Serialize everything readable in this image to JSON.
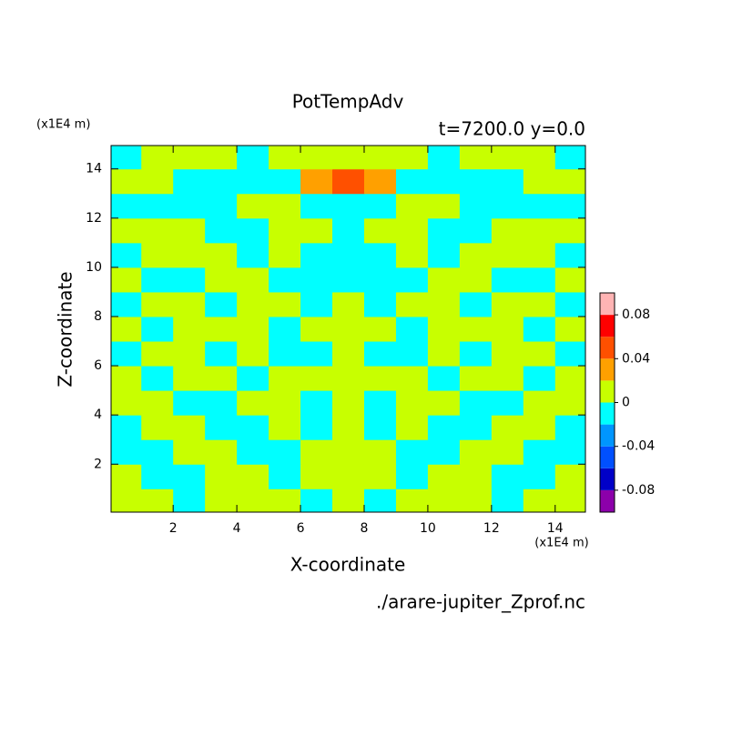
{
  "chart_data": {
    "type": "contour",
    "title": "PotTempAdv",
    "subtitle": "t=7200.0 y=0.0",
    "x_unit": "(x1E4 m)",
    "y_unit": "(x1E4 m)",
    "x_label": "X-coordinate",
    "y_label": "Z-coordinate",
    "source": "./arare-jupiter_Zprof.nc",
    "xlim": [
      0.05,
      14.95
    ],
    "ylim": [
      0.05,
      14.95
    ],
    "xticks": [
      2,
      4,
      6,
      8,
      10,
      12,
      14
    ],
    "yticks": [
      2,
      4,
      6,
      8,
      10,
      12,
      14
    ],
    "levels": [
      -0.1,
      -0.08,
      -0.06,
      -0.04,
      -0.02,
      0,
      0.02,
      0.04,
      0.06,
      0.08,
      0.1
    ],
    "colors": [
      "#8c00aa",
      "#0000c8",
      "#0050ff",
      "#0096ff",
      "#00ffff",
      "#c8ff00",
      "#ffa000",
      "#ff5000",
      "#ff0000",
      "#ffb4b4"
    ],
    "cbticks": [
      0.08,
      0.04,
      0,
      -0.04,
      -0.08
    ],
    "x": [
      0.5,
      1.5,
      2.5,
      3.5,
      4.5,
      5.5,
      6.5,
      7.5,
      8.5,
      9.5,
      10.5,
      11.5,
      12.5,
      13.5,
      14.5
    ],
    "y": [
      0.5,
      1.5,
      2.5,
      3.5,
      4.5,
      5.5,
      6.5,
      7.5,
      8.5,
      9.5,
      10.5,
      11.5,
      12.5,
      13.5,
      14.5
    ],
    "z": [
      [
        0.01,
        0.01,
        -0.01,
        0.01,
        0.01,
        0.01,
        -0.01,
        0.01,
        -0.01,
        0.01,
        0.01,
        0.01,
        -0.01,
        0.01,
        0.01
      ],
      [
        0.01,
        -0.01,
        -0.01,
        0.01,
        0.01,
        -0.01,
        0.01,
        0.01,
        0.01,
        -0.01,
        0.01,
        0.01,
        -0.01,
        -0.01,
        0.01
      ],
      [
        -0.01,
        -0.01,
        0.01,
        0.01,
        -0.01,
        -0.01,
        0.01,
        0.01,
        0.01,
        -0.01,
        -0.01,
        0.01,
        0.01,
        -0.01,
        -0.01
      ],
      [
        -0.01,
        0.01,
        0.01,
        -0.01,
        -0.01,
        0.01,
        -0.01,
        0.01,
        -0.01,
        0.01,
        -0.01,
        -0.01,
        0.01,
        0.01,
        -0.01
      ],
      [
        0.01,
        0.01,
        -0.01,
        -0.01,
        0.01,
        0.01,
        -0.01,
        0.01,
        -0.01,
        0.01,
        0.01,
        -0.01,
        -0.01,
        0.01,
        0.01
      ],
      [
        0.01,
        -0.01,
        0.01,
        0.01,
        -0.01,
        0.01,
        0.01,
        0.01,
        0.01,
        0.01,
        -0.01,
        0.01,
        0.01,
        -0.01,
        0.01
      ],
      [
        -0.01,
        0.01,
        0.01,
        -0.01,
        0.01,
        -0.01,
        -0.01,
        0.01,
        -0.01,
        -0.01,
        0.01,
        -0.01,
        0.01,
        0.01,
        -0.01
      ],
      [
        0.01,
        -0.01,
        0.01,
        0.01,
        0.01,
        -0.01,
        0.01,
        0.01,
        0.01,
        -0.01,
        0.01,
        0.01,
        0.01,
        -0.01,
        0.01
      ],
      [
        -0.01,
        0.01,
        0.01,
        -0.01,
        0.01,
        0.01,
        -0.01,
        0.01,
        -0.01,
        0.01,
        0.01,
        -0.01,
        0.01,
        0.01,
        -0.01
      ],
      [
        0.01,
        -0.01,
        -0.01,
        0.01,
        0.01,
        -0.01,
        -0.01,
        -0.01,
        -0.01,
        -0.01,
        0.01,
        0.01,
        -0.01,
        -0.01,
        0.01
      ],
      [
        -0.01,
        0.01,
        0.01,
        0.01,
        -0.01,
        0.01,
        -0.01,
        -0.01,
        -0.01,
        0.01,
        -0.01,
        0.01,
        0.01,
        0.01,
        -0.01
      ],
      [
        0.01,
        0.01,
        0.01,
        -0.01,
        -0.01,
        0.01,
        0.01,
        -0.01,
        0.01,
        0.01,
        -0.01,
        -0.01,
        0.01,
        0.01,
        0.01
      ],
      [
        -0.01,
        -0.01,
        -0.01,
        -0.01,
        0.01,
        0.01,
        -0.01,
        -0.01,
        -0.01,
        0.01,
        0.01,
        -0.01,
        -0.01,
        -0.01,
        -0.01
      ],
      [
        0.01,
        0.01,
        -0.01,
        -0.01,
        -0.01,
        -0.01,
        0.03,
        0.05,
        0.03,
        -0.01,
        -0.01,
        -0.01,
        -0.01,
        0.01,
        0.01
      ],
      [
        -0.01,
        0.01,
        0.01,
        0.01,
        -0.01,
        0.01,
        0.01,
        0.01,
        0.01,
        0.01,
        -0.01,
        0.01,
        0.01,
        0.01,
        -0.01
      ]
    ]
  }
}
